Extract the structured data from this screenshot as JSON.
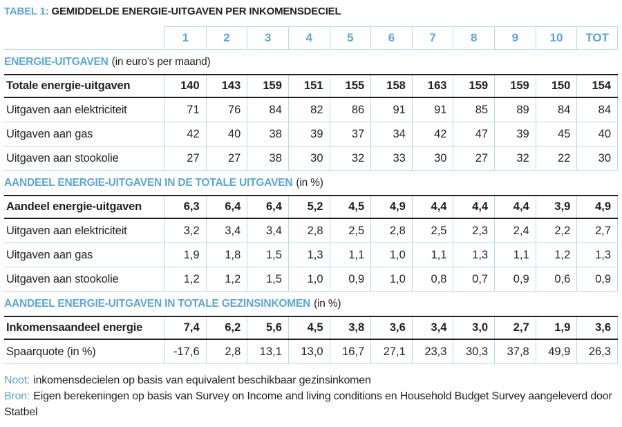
{
  "title": {
    "label": "TABEL 1:",
    "text": "GEMIDDELDE ENERGIE-UITGAVEN PER INKOMENSDECIEL"
  },
  "columns": [
    "1",
    "2",
    "3",
    "4",
    "5",
    "6",
    "7",
    "8",
    "9",
    "10",
    "TOT"
  ],
  "sections": [
    {
      "heading": "ENERGIE-UITGAVEN",
      "heading_suffix": "(in euro’s per maand)",
      "rows": [
        {
          "label": "Totale energie-uitgaven",
          "bold": true,
          "values": [
            "140",
            "143",
            "159",
            "151",
            "155",
            "158",
            "163",
            "159",
            "159",
            "150",
            "154"
          ]
        },
        {
          "label": "Uitgaven aan elektriciteit",
          "bold": false,
          "values": [
            "71",
            "76",
            "84",
            "82",
            "86",
            "91",
            "91",
            "85",
            "89",
            "84",
            "84"
          ]
        },
        {
          "label": "Uitgaven aan gas",
          "bold": false,
          "values": [
            "42",
            "40",
            "38",
            "39",
            "37",
            "34",
            "42",
            "47",
            "39",
            "45",
            "40"
          ]
        },
        {
          "label": "Uitgaven aan stookolie",
          "bold": false,
          "values": [
            "27",
            "27",
            "38",
            "30",
            "32",
            "33",
            "30",
            "27",
            "32",
            "22",
            "30"
          ]
        }
      ]
    },
    {
      "heading": "AANDEEL ENERGIE-UITGAVEN IN DE TOTALE UITGAVEN",
      "heading_suffix": "(in %)",
      "rows": [
        {
          "label": "Aandeel energie-uitgaven",
          "bold": true,
          "values": [
            "6,3",
            "6,4",
            "6,4",
            "5,2",
            "4,5",
            "4,9",
            "4,4",
            "4,4",
            "4,4",
            "3,9",
            "4,9"
          ]
        },
        {
          "label": "Uitgaven aan elektriciteit",
          "bold": false,
          "values": [
            "3,2",
            "3,4",
            "3,4",
            "2,8",
            "2,5",
            "2,8",
            "2,5",
            "2,3",
            "2,4",
            "2,2",
            "2,7"
          ]
        },
        {
          "label": "Uitgaven aan gas",
          "bold": false,
          "values": [
            "1,9",
            "1,8",
            "1,5",
            "1,3",
            "1,1",
            "1,0",
            "1,1",
            "1,3",
            "1,1",
            "1,2",
            "1,3"
          ]
        },
        {
          "label": "Uitgaven aan stookolie",
          "bold": false,
          "values": [
            "1,2",
            "1,2",
            "1,5",
            "1,0",
            "0,9",
            "1,0",
            "0,8",
            "0,7",
            "0,9",
            "0,6",
            "0,9"
          ]
        }
      ]
    },
    {
      "heading": "AANDEEL ENERGIE-UITGAVEN IN TOTALE GEZINSINKOMEN",
      "heading_suffix": "(in %)",
      "rows": [
        {
          "label": "Inkomensaandeel energie",
          "bold": true,
          "values": [
            "7,4",
            "6,2",
            "5,6",
            "4,5",
            "3,8",
            "3,6",
            "3,4",
            "3,0",
            "2,7",
            "1,9",
            "3,6"
          ]
        },
        {
          "label": "Spaarquote (in %)",
          "bold": false,
          "values": [
            "-17,6",
            "2,8",
            "13,1",
            "13,0",
            "16,7",
            "27,1",
            "23,3",
            "30,3",
            "37,8",
            "49,9",
            "26,3"
          ]
        }
      ]
    }
  ],
  "notes": [
    {
      "label": "Noot:",
      "text": "inkomensdecielen op basis van equivalent beschikbaar gezinsinkomen"
    },
    {
      "label": "Bron:",
      "text": "Eigen berekeningen op basis van Survey on Income and living conditions en Household Budget Survey aangeleverd door Statbel"
    }
  ],
  "colors": {
    "accent_blue": "#5aa5da",
    "light_border": "#b8d8ef",
    "text_dark": "#231f20"
  }
}
